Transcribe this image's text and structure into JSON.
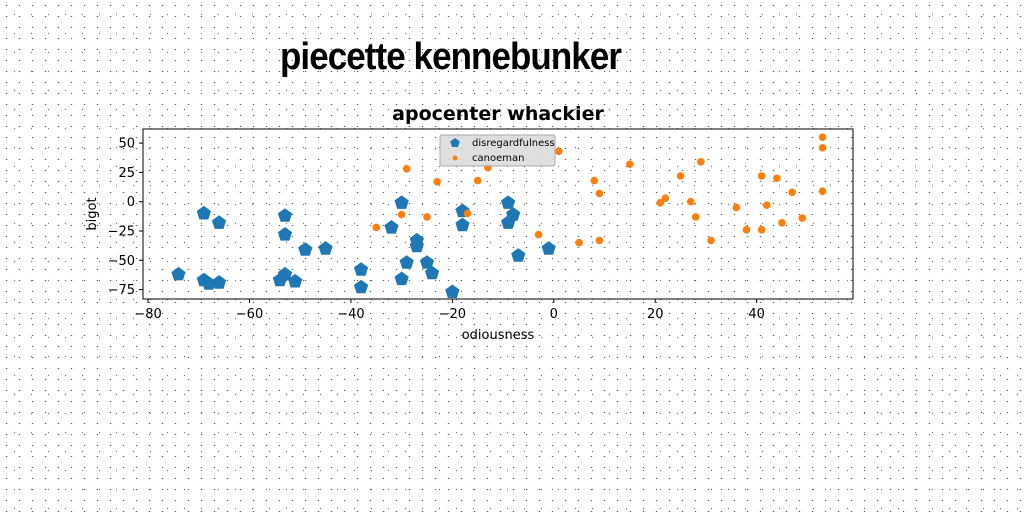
{
  "page_title": "piecette kennebunker",
  "chart_data": {
    "type": "scatter",
    "title": "apocenter whackier",
    "xlabel": "odiousness",
    "ylabel": "bigot",
    "xlim": [
      -81,
      59
    ],
    "ylim": [
      -83,
      62
    ],
    "xticks": [
      -80,
      -60,
      -40,
      -20,
      0,
      20,
      40
    ],
    "yticks": [
      -75,
      -50,
      -25,
      0,
      25,
      50
    ],
    "grid": false,
    "legend_position": "top-center",
    "series": [
      {
        "name": "disregardfulness",
        "color": "#1f77b4",
        "marker": "pentagon",
        "points": [
          [
            -74,
            -62
          ],
          [
            -69,
            -10
          ],
          [
            -69,
            -67
          ],
          [
            -68,
            -70
          ],
          [
            -66,
            -69
          ],
          [
            -66,
            -18
          ],
          [
            -54,
            -67
          ],
          [
            -53,
            -12
          ],
          [
            -53,
            -28
          ],
          [
            -53,
            -62
          ],
          [
            -51,
            -68
          ],
          [
            -49,
            -41
          ],
          [
            -45,
            -40
          ],
          [
            -38,
            -58
          ],
          [
            -38,
            -73
          ],
          [
            -32,
            -22
          ],
          [
            -30,
            -1
          ],
          [
            -30,
            -66
          ],
          [
            -29,
            -52
          ],
          [
            -27,
            -33
          ],
          [
            -27,
            -38
          ],
          [
            -25,
            -52
          ],
          [
            -24,
            -61
          ],
          [
            -20,
            -77
          ],
          [
            -18,
            -8
          ],
          [
            -18,
            -20
          ],
          [
            -9,
            -1
          ],
          [
            -9,
            -18
          ],
          [
            -8,
            -11
          ],
          [
            -7,
            -46
          ],
          [
            -1,
            -40
          ]
        ]
      },
      {
        "name": "canoeman",
        "color": "#ff7f0e",
        "marker": "circle",
        "points": [
          [
            -35,
            -22
          ],
          [
            -30,
            -11
          ],
          [
            -29,
            28
          ],
          [
            -25,
            -13
          ],
          [
            -23,
            17
          ],
          [
            -17,
            -10
          ],
          [
            -15,
            18
          ],
          [
            -13,
            29
          ],
          [
            -3,
            -28
          ],
          [
            1,
            43
          ],
          [
            5,
            -35
          ],
          [
            8,
            18
          ],
          [
            9,
            7
          ],
          [
            9,
            -33
          ],
          [
            15,
            32
          ],
          [
            21,
            -1
          ],
          [
            22,
            3
          ],
          [
            25,
            22
          ],
          [
            27,
            0
          ],
          [
            28,
            -13
          ],
          [
            29,
            34
          ],
          [
            31,
            -33
          ],
          [
            36,
            -5
          ],
          [
            38,
            -24
          ],
          [
            41,
            22
          ],
          [
            41,
            -24
          ],
          [
            42,
            -3
          ],
          [
            44,
            20
          ],
          [
            45,
            -18
          ],
          [
            47,
            8
          ],
          [
            49,
            -14
          ],
          [
            53,
            55
          ],
          [
            53,
            46
          ],
          [
            53,
            9
          ]
        ]
      }
    ]
  }
}
